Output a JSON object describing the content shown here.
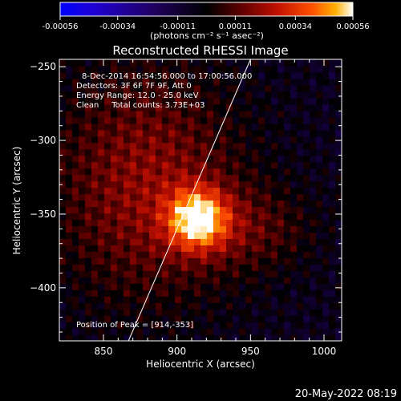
{
  "colorbar": {
    "tick_labels": [
      "-0.00056",
      "-0.00034",
      "-0.00011",
      "0.00011",
      "0.00034",
      "0.00056"
    ],
    "tick_values": [
      -0.00056,
      -0.00034,
      -0.00011,
      0.00011,
      0.00034,
      0.00056
    ],
    "range": [
      -0.00056,
      0.00056
    ],
    "unit_label": "(photons cm⁻² s⁻¹ asec⁻²)",
    "colors": [
      "#0000ff",
      "#2000d0",
      "#200060",
      "#000000",
      "#600000",
      "#c01000",
      "#ff5000",
      "#ffb000",
      "#ffffff"
    ]
  },
  "chart_data": {
    "type": "heatmap",
    "title": "Reconstructed RHESSI Image",
    "xlabel": "Heliocentric X (arcsec)",
    "ylabel": "Heliocentric Y (arcsec)",
    "xlim": [
      820,
      1012
    ],
    "ylim": [
      -436,
      -245
    ],
    "xticks": [
      850,
      900,
      950,
      1000
    ],
    "yticks": [
      -250,
      -300,
      -350,
      -400
    ],
    "xtick_labels": [
      "850",
      "900",
      "950",
      "1000"
    ],
    "ytick_labels": [
      "−250",
      "−300",
      "−350",
      "−400"
    ],
    "peak": [
      914,
      -353
    ],
    "limb_line": [
      [
        867,
        -436
      ],
      [
        950,
        -245
      ]
    ],
    "annotations": [
      "8-Dec-2014 16:54:56.000 to 17:00:56.000",
      "Detectors: 3F 6F 7F 9F, Att 0",
      "Energy Range: 12.0 - 25.0 keV",
      "Clean     Total counts: 3.73E+03"
    ],
    "peak_label": "Position of Peak = [914,-353]"
  },
  "footer": {
    "timestamp": "20-May-2022 08:19"
  }
}
